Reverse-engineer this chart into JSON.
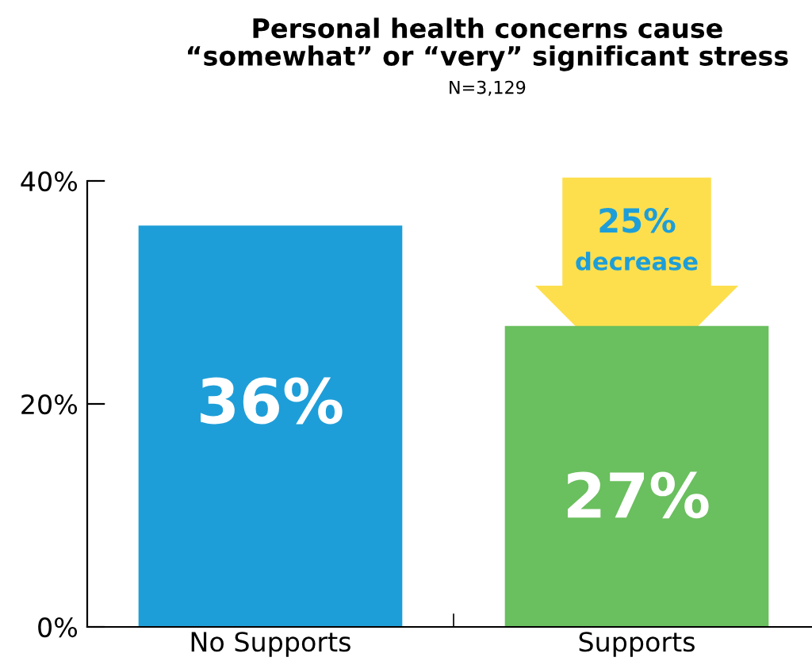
{
  "chart_data": {
    "type": "bar",
    "title": "Personal health concerns cause\n“somewhat” or “very” significant stress",
    "subtitle": "N=3,129",
    "categories": [
      "No Supports",
      "Supports"
    ],
    "values": [
      36,
      27
    ],
    "colors": [
      "#1e9ed8",
      "#6abf5e"
    ],
    "value_labels": [
      "36%",
      "27%"
    ],
    "ylim": [
      0,
      40
    ],
    "yticks": [
      {
        "value": 0,
        "label": "0%"
      },
      {
        "value": 20,
        "label": "20%"
      },
      {
        "value": 40,
        "label": "40%"
      }
    ],
    "grid": false,
    "legend": false,
    "annotations": [
      "25%\ndecrease"
    ]
  }
}
